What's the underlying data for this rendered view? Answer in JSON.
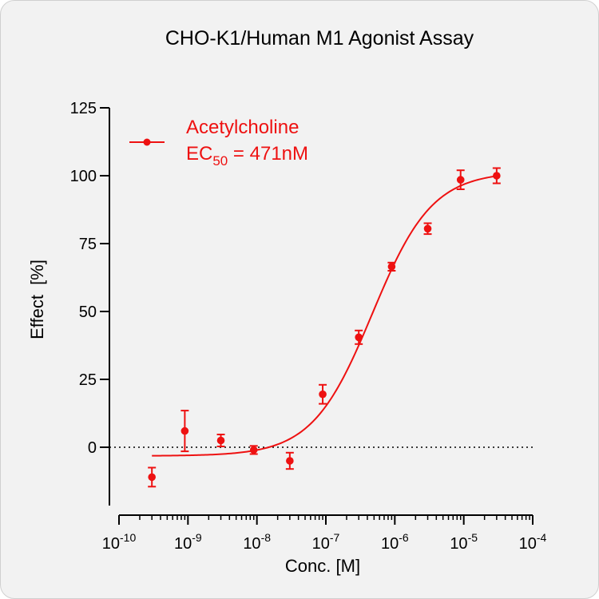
{
  "chart_data": {
    "type": "scatter",
    "title": "CHO-K1/Human M1 Agonist Assay",
    "xlabel": "Conc. [M]",
    "ylabel": "Effect  [%]",
    "x_scale": "log10",
    "xlim": [
      1e-10,
      0.0001
    ],
    "ylim": [
      -20,
      125
    ],
    "x_ticks": [
      1e-10,
      1e-09,
      1e-08,
      1e-07,
      1e-06,
      1e-05,
      0.0001
    ],
    "x_tick_labels": [
      {
        "base": "10",
        "exp": "-10"
      },
      {
        "base": "10",
        "exp": "-9"
      },
      {
        "base": "10",
        "exp": "-8"
      },
      {
        "base": "10",
        "exp": "-7"
      },
      {
        "base": "10",
        "exp": "-6"
      },
      {
        "base": "10",
        "exp": "-5"
      },
      {
        "base": "10",
        "exp": "-4"
      }
    ],
    "y_ticks": [
      0,
      25,
      50,
      75,
      100,
      125
    ],
    "y_tick_labels": [
      "0",
      "25",
      "50",
      "75",
      "100",
      "125"
    ],
    "grid": false,
    "baseline": {
      "y": 0,
      "style": "dotted"
    },
    "legend_position": "top-left",
    "series": [
      {
        "name": "Acetylcholine",
        "color": "#ee1111",
        "points": [
          {
            "x": 3e-10,
            "y": -11,
            "err": 3.5
          },
          {
            "x": 9e-10,
            "y": 6,
            "err": 7.5
          },
          {
            "x": 3e-09,
            "y": 2.5,
            "err": 2.2
          },
          {
            "x": 9e-09,
            "y": -1,
            "err": 1.5
          },
          {
            "x": 3e-08,
            "y": -5,
            "err": 3.0
          },
          {
            "x": 9e-08,
            "y": 19.5,
            "err": 3.5
          },
          {
            "x": 3e-07,
            "y": 40.5,
            "err": 2.5
          },
          {
            "x": 9e-07,
            "y": 66.5,
            "err": 1.5
          },
          {
            "x": 3e-06,
            "y": 80.5,
            "err": 2.0
          },
          {
            "x": 9e-06,
            "y": 98.5,
            "err": 3.5
          },
          {
            "x": 3e-05,
            "y": 100,
            "err": 2.8
          }
        ],
        "fit": {
          "model": "4PL",
          "bottom": -3.2,
          "top": 101.5,
          "ec50": 4.71e-07,
          "hill": 1.0
        }
      }
    ],
    "annotations": [
      {
        "prefix": "EC",
        "subscript": "50",
        "suffix": " = 471nM"
      }
    ]
  }
}
